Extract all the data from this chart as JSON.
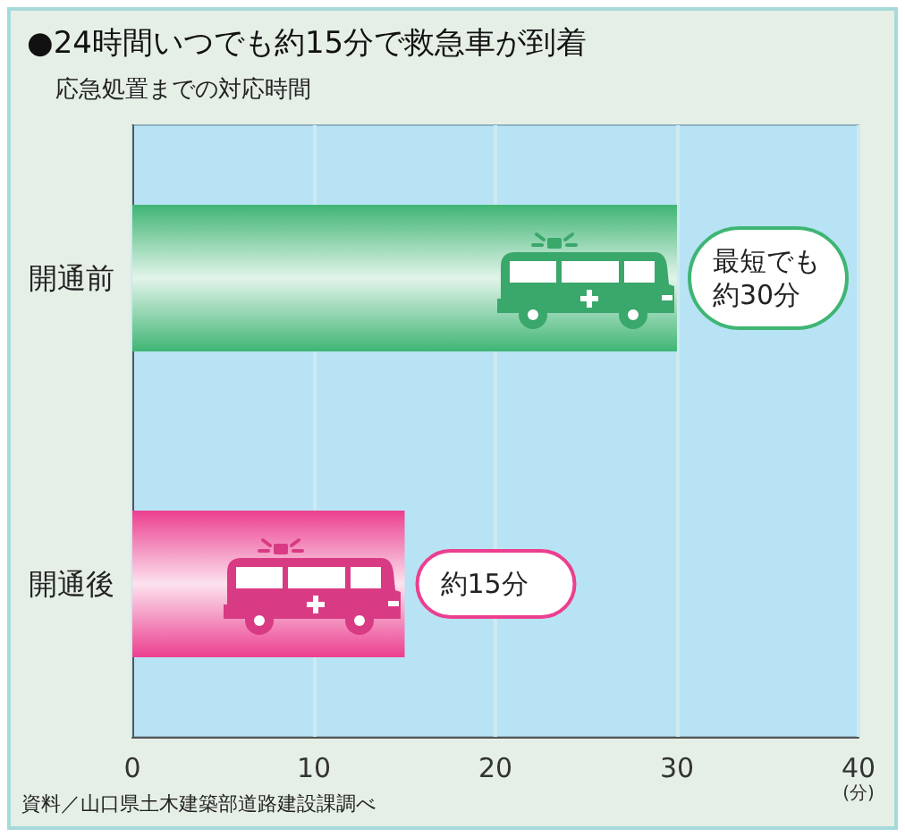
{
  "chart_data": {
    "type": "bar",
    "orientation": "horizontal",
    "title": "●24時間いつでも約15分で救急車が到着",
    "subtitle": "応急処置までの対応時間",
    "xlabel": "(分)",
    "categories": [
      "開通前",
      "開通後"
    ],
    "values": [
      30,
      15
    ],
    "colors": [
      "#3fb574",
      "#ec3f8f"
    ],
    "value_labels": [
      "最短でも約30分",
      "約15分"
    ],
    "xlim": [
      0,
      40
    ],
    "xticks": [
      0,
      10,
      20,
      30,
      40
    ],
    "grid": "x",
    "annotations": [
      "資料／山口県土木建築部道路建設課調べ"
    ]
  }
}
